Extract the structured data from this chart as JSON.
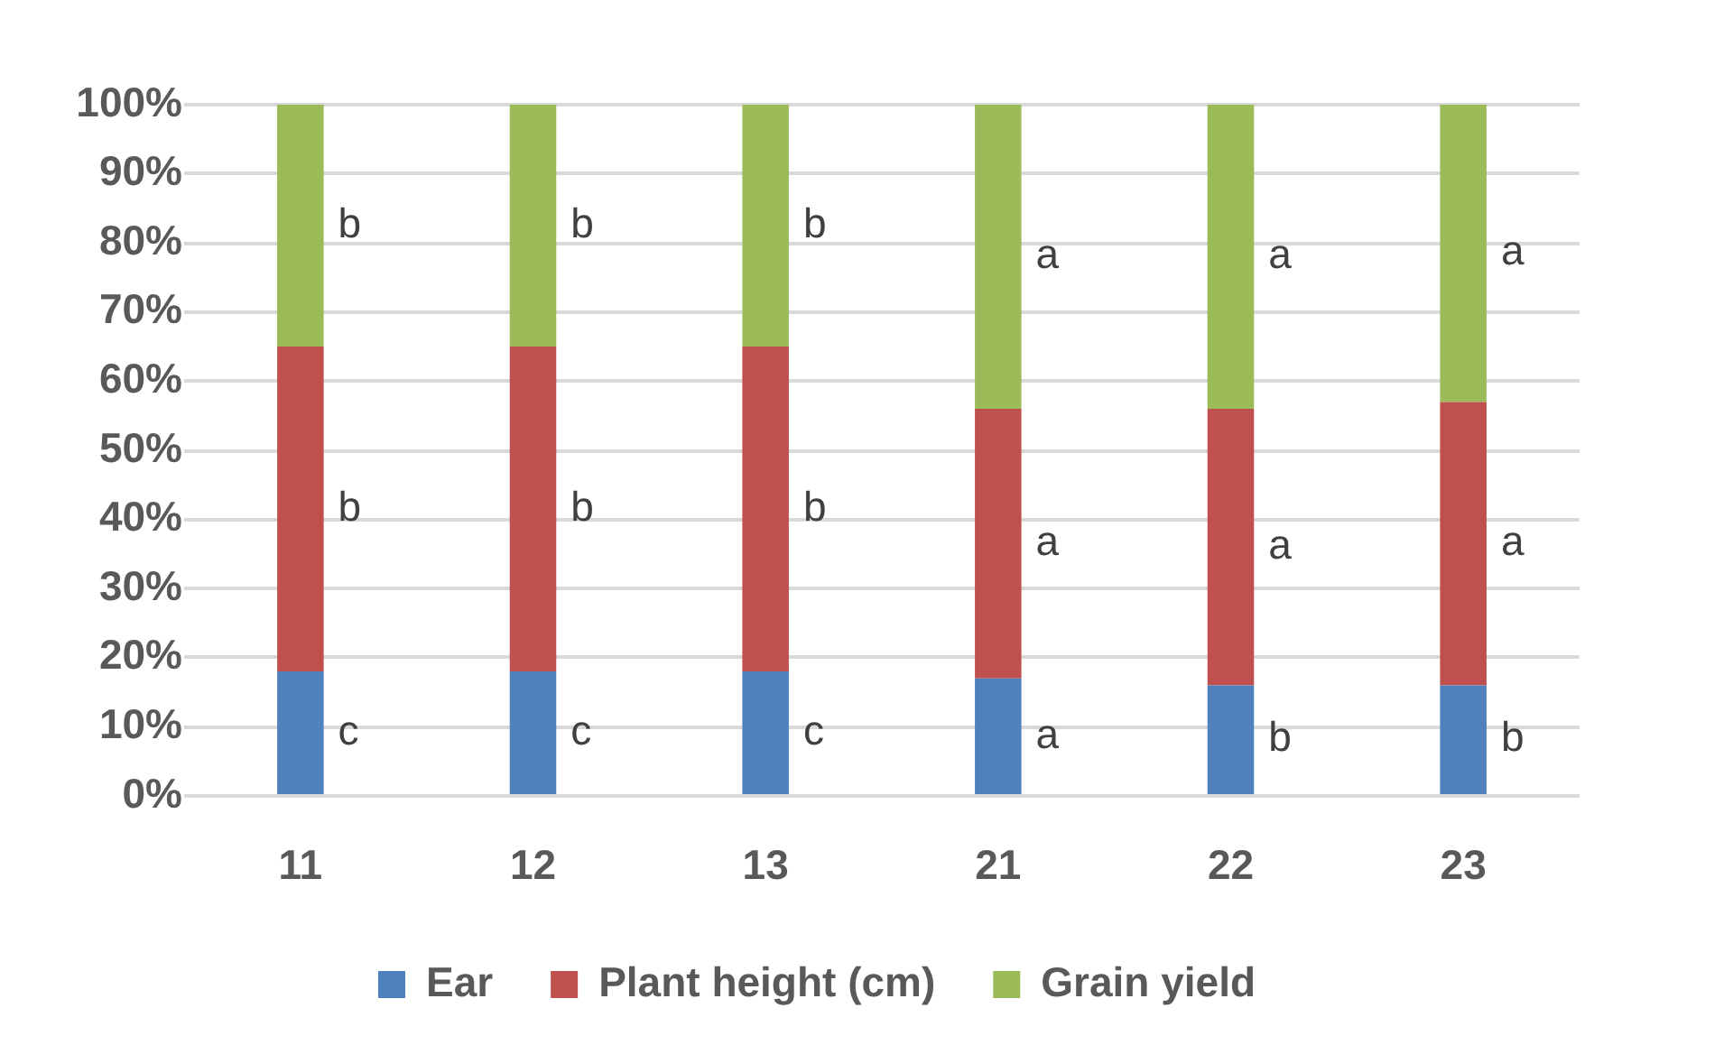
{
  "chart_data": {
    "type": "bar",
    "stacked": true,
    "categories": [
      "11",
      "12",
      "13",
      "21",
      "22",
      "23"
    ],
    "series": [
      {
        "name": "Ear",
        "color": "#4f81bd",
        "values": [
          18,
          18,
          18,
          17,
          16,
          16
        ],
        "value_labels": [
          "c",
          "c",
          "c",
          "a",
          "b",
          "b"
        ]
      },
      {
        "name": "Plant height (cm)",
        "color": "#c0504d",
        "values": [
          47,
          47,
          47,
          39,
          40,
          41
        ],
        "value_labels": [
          "b",
          "b",
          "b",
          "a",
          "a",
          "a"
        ]
      },
      {
        "name": "Grain yield",
        "color": "#9bbb59",
        "values": [
          35,
          35,
          35,
          44,
          44,
          43
        ],
        "value_labels": [
          "b",
          "b",
          "b",
          "a",
          "a",
          "a"
        ]
      }
    ],
    "ylim": [
      0,
      100
    ],
    "yticks": [
      {
        "value": 0,
        "label": "0%"
      },
      {
        "value": 10,
        "label": "10%"
      },
      {
        "value": 20,
        "label": "20%"
      },
      {
        "value": 30,
        "label": "30%"
      },
      {
        "value": 40,
        "label": "40%"
      },
      {
        "value": 50,
        "label": "50%"
      },
      {
        "value": 60,
        "label": "60%"
      },
      {
        "value": 70,
        "label": "70%"
      },
      {
        "value": 80,
        "label": "80%"
      },
      {
        "value": 90,
        "label": "90%"
      },
      {
        "value": 100,
        "label": "100%"
      }
    ],
    "grid": "y",
    "legend": "bottom"
  }
}
